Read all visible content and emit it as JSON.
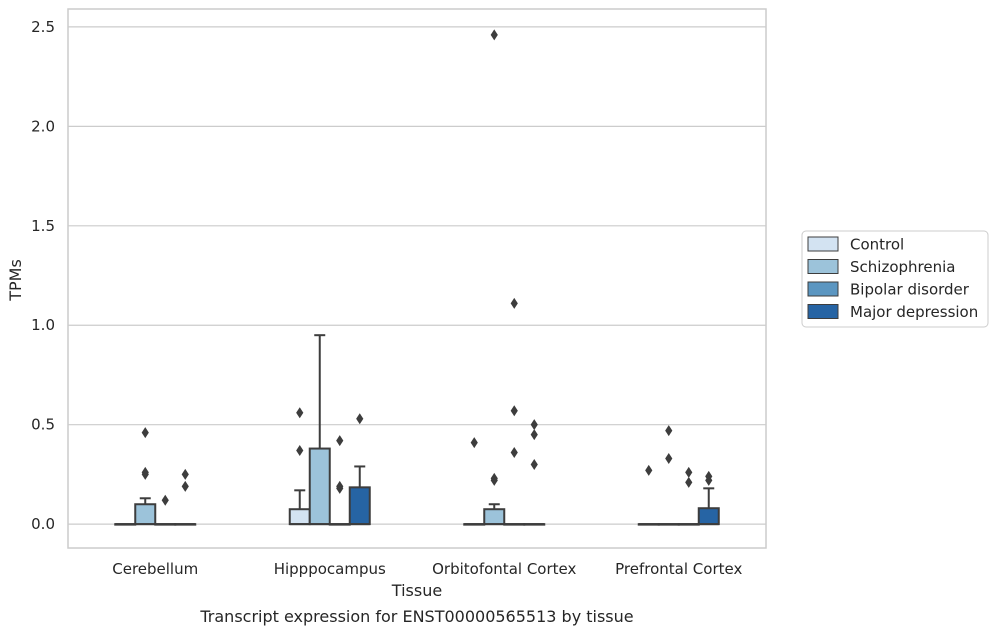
{
  "chart_data": {
    "type": "boxplot",
    "title": "Transcript expression for ENST00000565513 by tissue",
    "xlabel": "Tissue",
    "ylabel": "TPMs",
    "ylim": [
      -0.12,
      2.59
    ],
    "yticks": [
      0.0,
      0.5,
      1.0,
      1.5,
      2.0,
      2.5
    ],
    "ytick_labels": [
      "0.0",
      "0.5",
      "1.0",
      "1.5",
      "2.0",
      "2.5"
    ],
    "grid": true,
    "legend_position": "right",
    "categories": [
      "Cerebellum",
      "Hipppocampus",
      "Orbitofontal Cortex",
      "Prefrontal Cortex"
    ],
    "series": [
      {
        "name": "Control",
        "color": "#d3e3f2",
        "boxes": [
          {
            "q1": 0,
            "median": 0,
            "q3": 0,
            "whisker_low": 0,
            "whisker_high": 0,
            "outliers": []
          },
          {
            "q1": 0,
            "median": 0,
            "q3": 0.075,
            "whisker_low": 0,
            "whisker_high": 0.17,
            "outliers": [
              0.37,
              0.56
            ]
          },
          {
            "q1": 0,
            "median": 0,
            "q3": 0,
            "whisker_low": 0,
            "whisker_high": 0,
            "outliers": [
              0.41
            ]
          },
          {
            "q1": 0,
            "median": 0,
            "q3": 0,
            "whisker_low": 0,
            "whisker_high": 0,
            "outliers": [
              0.27
            ]
          }
        ]
      },
      {
        "name": "Schizophrenia",
        "color": "#9cc3da",
        "boxes": [
          {
            "q1": 0,
            "median": 0,
            "q3": 0.1,
            "whisker_low": 0,
            "whisker_high": 0.13,
            "outliers": [
              0.25,
              0.26,
              0.46
            ]
          },
          {
            "q1": 0,
            "median": 0,
            "q3": 0.38,
            "whisker_low": 0,
            "whisker_high": 0.95,
            "outliers": []
          },
          {
            "q1": 0,
            "median": 0,
            "q3": 0.075,
            "whisker_low": 0,
            "whisker_high": 0.1,
            "outliers": [
              0.22,
              0.23,
              2.46
            ]
          },
          {
            "q1": 0,
            "median": 0,
            "q3": 0,
            "whisker_low": 0,
            "whisker_high": 0,
            "outliers": [
              0.33,
              0.47
            ]
          }
        ]
      },
      {
        "name": "Bipolar disorder",
        "color": "#5b96c1",
        "boxes": [
          {
            "q1": 0,
            "median": 0,
            "q3": 0,
            "whisker_low": 0,
            "whisker_high": 0,
            "outliers": [
              0.12
            ]
          },
          {
            "q1": 0,
            "median": 0,
            "q3": 0,
            "whisker_low": 0,
            "whisker_high": 0,
            "outliers": [
              0.18,
              0.19,
              0.42
            ]
          },
          {
            "q1": 0,
            "median": 0,
            "q3": 0,
            "whisker_low": 0,
            "whisker_high": 0,
            "outliers": [
              0.36,
              0.57,
              1.11
            ]
          },
          {
            "q1": 0,
            "median": 0,
            "q3": 0,
            "whisker_low": 0,
            "whisker_high": 0,
            "outliers": [
              0.21,
              0.26
            ]
          }
        ]
      },
      {
        "name": "Major depression",
        "color": "#2664a4",
        "boxes": [
          {
            "q1": 0,
            "median": 0,
            "q3": 0,
            "whisker_low": 0,
            "whisker_high": 0,
            "outliers": [
              0.19,
              0.25
            ]
          },
          {
            "q1": 0,
            "median": 0,
            "q3": 0.185,
            "whisker_low": 0,
            "whisker_high": 0.29,
            "outliers": [
              0.53
            ]
          },
          {
            "q1": 0,
            "median": 0,
            "q3": 0,
            "whisker_low": 0,
            "whisker_high": 0,
            "outliers": [
              0.3,
              0.45,
              0.5
            ]
          },
          {
            "q1": 0,
            "median": 0,
            "q3": 0.08,
            "whisker_low": 0,
            "whisker_high": 0.18,
            "outliers": [
              0.22,
              0.24
            ]
          }
        ]
      }
    ]
  }
}
